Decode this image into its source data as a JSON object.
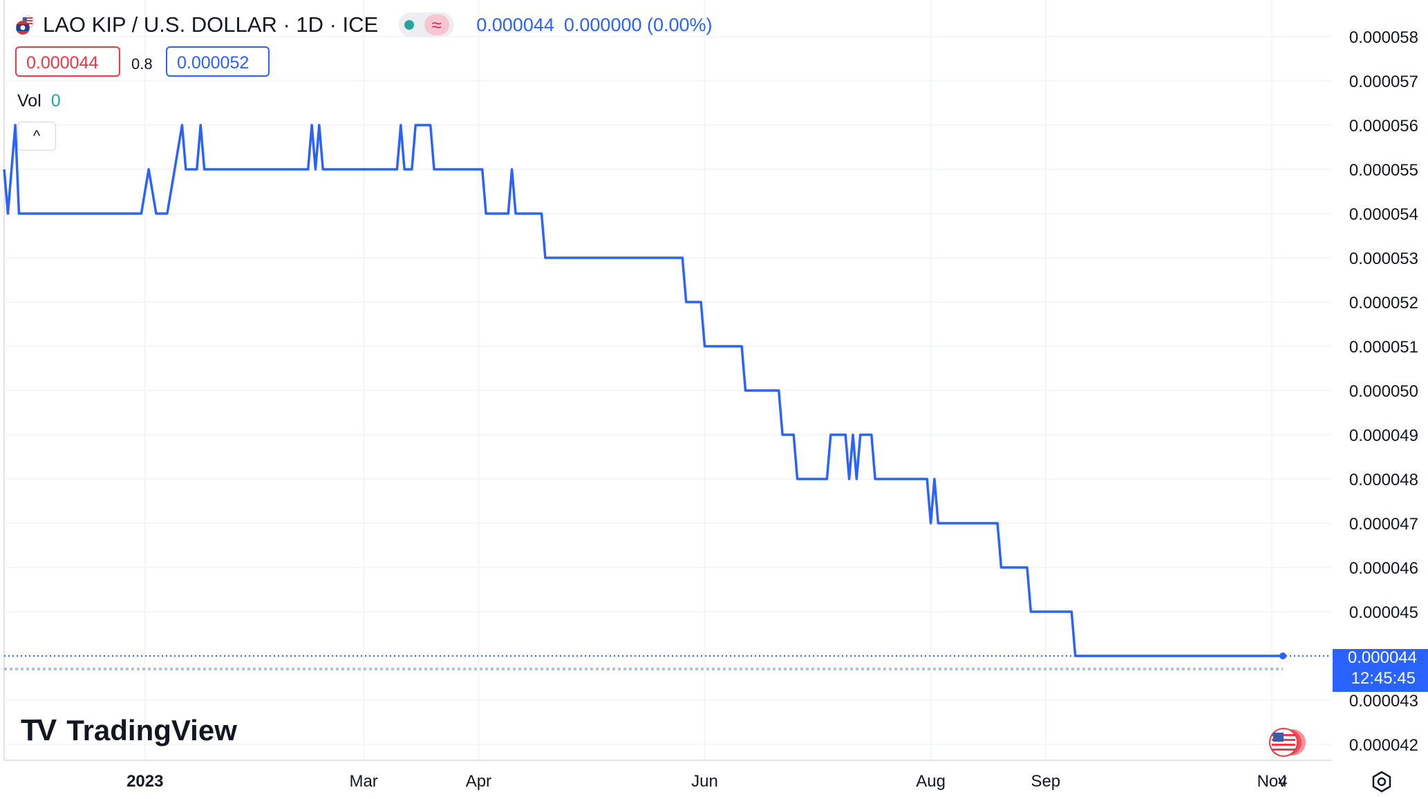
{
  "header": {
    "symbol_title": "LAO KIP / U.S. DOLLAR · 1D · ICE",
    "price": "0.000044",
    "change": "0.000000 (0.00%)",
    "status_dot": "market-open-dot",
    "wave_icon": "≈"
  },
  "quote": {
    "bid": "0.000044",
    "spread": "0.8",
    "ask": "0.000052"
  },
  "volume": {
    "label": "Vol",
    "value": "0"
  },
  "collapse_icon": "^",
  "branding": {
    "mark": "TV",
    "name": "TradingView"
  },
  "price_axis": {
    "ticks": [
      "0.000058",
      "0.000057",
      "0.000056",
      "0.000055",
      "0.000054",
      "0.000053",
      "0.000052",
      "0.000051",
      "0.000050",
      "0.000049",
      "0.000048",
      "0.000047",
      "0.000046",
      "0.000045",
      "0.000043",
      "0.000042"
    ],
    "last_price": "0.000044",
    "countdown": "12:45:45"
  },
  "time_axis": {
    "labels": [
      "2023",
      "Mar",
      "Apr",
      "Jun",
      "Aug",
      "Sep",
      "Nov",
      "4"
    ]
  },
  "colors": {
    "line": "#2962ff",
    "bid": "#f23645",
    "ask": "#2962ff",
    "grid": "#f0f3fa",
    "volume": "#26a69a"
  },
  "chart_data": {
    "type": "line",
    "title": "LAO KIP / U.S. DOLLAR · 1D · ICE",
    "ylim": [
      4.18e-05,
      5.82e-05
    ],
    "xlim": [
      "2022-11-24",
      "2023-11-04"
    ],
    "grid": true,
    "series": [
      {
        "name": "",
        "points": [
          [
            "2022-11-24",
            5.5e-05
          ],
          [
            "2022-11-25",
            5.4e-05
          ],
          [
            "2022-11-26",
            5.5e-05
          ],
          [
            "2022-11-27",
            5.6e-05
          ],
          [
            "2022-11-28",
            5.4e-05
          ],
          [
            "2022-12-31",
            5.4e-05
          ],
          [
            "2023-01-02",
            5.5e-05
          ],
          [
            "2023-01-04",
            5.4e-05
          ],
          [
            "2023-01-07",
            5.4e-05
          ],
          [
            "2023-01-09",
            5.5e-05
          ],
          [
            "2023-01-11",
            5.6e-05
          ],
          [
            "2023-01-12",
            5.5e-05
          ],
          [
            "2023-01-15",
            5.5e-05
          ],
          [
            "2023-01-16",
            5.6e-05
          ],
          [
            "2023-01-17",
            5.5e-05
          ],
          [
            "2023-02-14",
            5.5e-05
          ],
          [
            "2023-02-15",
            5.6e-05
          ],
          [
            "2023-02-16",
            5.5e-05
          ],
          [
            "2023-02-17",
            5.6e-05
          ],
          [
            "2023-02-18",
            5.5e-05
          ],
          [
            "2023-03-10",
            5.5e-05
          ],
          [
            "2023-03-11",
            5.6e-05
          ],
          [
            "2023-03-12",
            5.5e-05
          ],
          [
            "2023-03-14",
            5.5e-05
          ],
          [
            "2023-03-15",
            5.6e-05
          ],
          [
            "2023-03-19",
            5.6e-05
          ],
          [
            "2023-03-20",
            5.5e-05
          ],
          [
            "2023-04-02",
            5.5e-05
          ],
          [
            "2023-04-03",
            5.4e-05
          ],
          [
            "2023-04-09",
            5.4e-05
          ],
          [
            "2023-04-10",
            5.5e-05
          ],
          [
            "2023-04-11",
            5.4e-05
          ],
          [
            "2023-04-18",
            5.4e-05
          ],
          [
            "2023-04-19",
            5.3e-05
          ],
          [
            "2023-05-26",
            5.3e-05
          ],
          [
            "2023-05-27",
            5.2e-05
          ],
          [
            "2023-05-31",
            5.2e-05
          ],
          [
            "2023-06-01",
            5.1e-05
          ],
          [
            "2023-06-11",
            5.1e-05
          ],
          [
            "2023-06-12",
            5e-05
          ],
          [
            "2023-06-21",
            5e-05
          ],
          [
            "2023-06-22",
            4.9e-05
          ],
          [
            "2023-06-25",
            4.9e-05
          ],
          [
            "2023-06-26",
            4.8e-05
          ],
          [
            "2023-07-04",
            4.8e-05
          ],
          [
            "2023-07-05",
            4.9e-05
          ],
          [
            "2023-07-09",
            4.9e-05
          ],
          [
            "2023-07-10",
            4.8e-05
          ],
          [
            "2023-07-11",
            4.9e-05
          ],
          [
            "2023-07-12",
            4.8e-05
          ],
          [
            "2023-07-13",
            4.9e-05
          ],
          [
            "2023-07-16",
            4.9e-05
          ],
          [
            "2023-07-17",
            4.8e-05
          ],
          [
            "2023-07-31",
            4.8e-05
          ],
          [
            "2023-08-01",
            4.7e-05
          ],
          [
            "2023-08-02",
            4.8e-05
          ],
          [
            "2023-08-03",
            4.7e-05
          ],
          [
            "2023-08-19",
            4.7e-05
          ],
          [
            "2023-08-20",
            4.6e-05
          ],
          [
            "2023-08-27",
            4.6e-05
          ],
          [
            "2023-08-28",
            4.5e-05
          ],
          [
            "2023-09-08",
            4.5e-05
          ],
          [
            "2023-09-09",
            4.4e-05
          ],
          [
            "2023-11-04",
            4.4e-05
          ]
        ]
      }
    ]
  }
}
